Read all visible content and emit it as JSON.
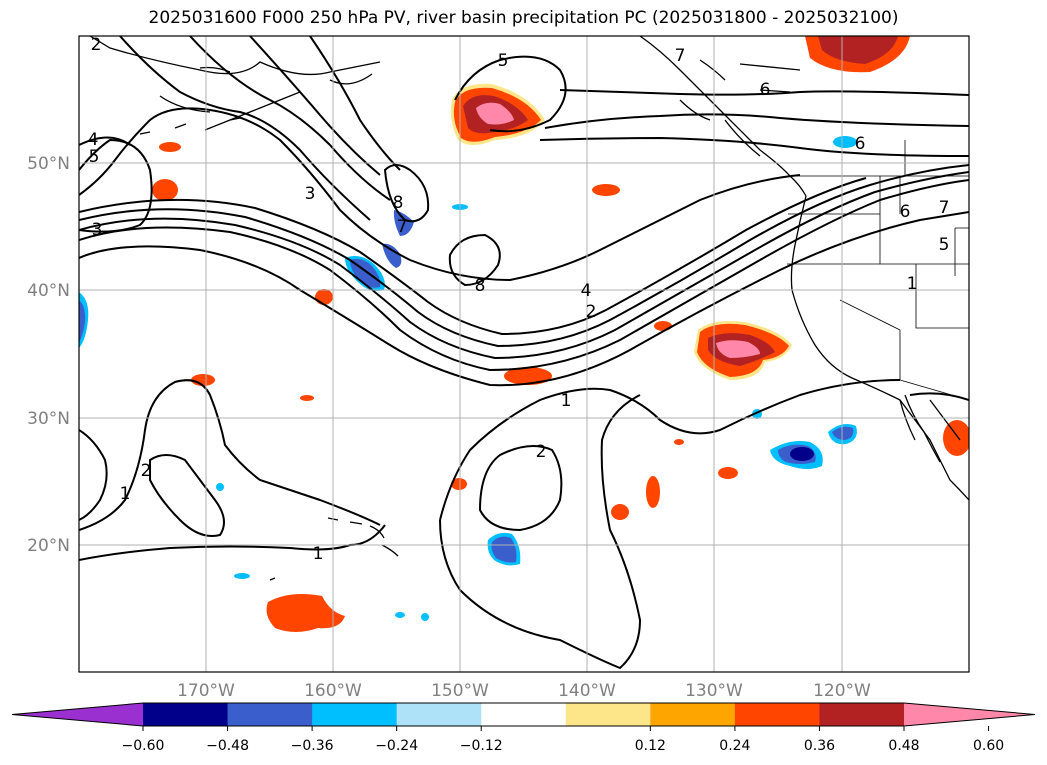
{
  "title": "2025031600 F000 250 hPa PV, river basin precipitation PC (2025031800 - 2025032100)",
  "map": {
    "lon_range": [
      -180,
      -110
    ],
    "lat_range": [
      10,
      60
    ],
    "lat_labels": [
      "50°N",
      "40°N",
      "30°N",
      "20°N"
    ],
    "lon_labels": [
      "170°W",
      "160°W",
      "150°W",
      "140°W",
      "130°W",
      "120°W"
    ],
    "gridlines": true,
    "coastline_color": "#000000"
  },
  "pv_contour_labels": [
    "2",
    "5",
    "7",
    "6",
    "6",
    "4",
    "5",
    "3",
    "3",
    "8",
    "7",
    "8",
    "4",
    "2",
    "6",
    "7",
    "5",
    "1",
    "1",
    "2",
    "2",
    "1",
    "1"
  ],
  "colorbar": {
    "ticks": [
      "−0.60",
      "−0.48",
      "−0.36",
      "−0.24",
      "−0.12",
      "0.12",
      "0.24",
      "0.36",
      "0.48",
      "0.60"
    ],
    "colors": [
      "#9b30d0",
      "#00008b",
      "#3a5fcd",
      "#00bfff",
      "#aee2f8",
      "#ffffff",
      "#fde68a",
      "#ffa500",
      "#ff4500",
      "#b22222",
      "#ff88aa"
    ],
    "extend": "both"
  }
}
